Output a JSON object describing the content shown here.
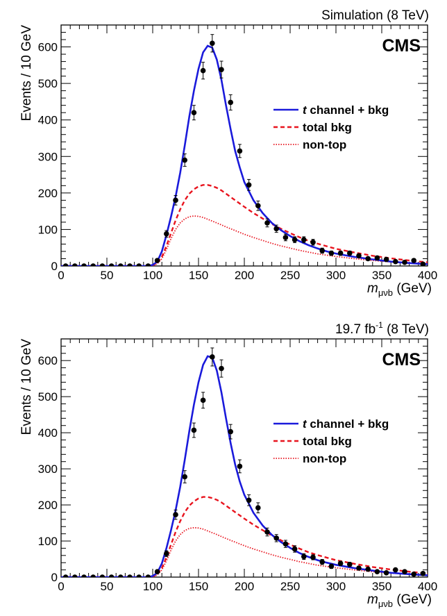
{
  "chart_data": [
    {
      "type": "line",
      "header_right": "Simulation (8 TeV)",
      "header_sup": "",
      "experiment": "CMS",
      "ylabel": "Events / 10 GeV",
      "xlabel_main": "m",
      "xlabel_sub": "μνb",
      "xlabel_unit": " (GeV)",
      "xlim": [
        0,
        400
      ],
      "ylim": [
        0,
        660
      ],
      "xticks": [
        0,
        50,
        100,
        150,
        200,
        250,
        300,
        350,
        400
      ],
      "yticks": [
        0,
        100,
        200,
        300,
        400,
        500,
        600
      ],
      "legend_placement": "right",
      "legend": [
        {
          "label_italic": "t",
          "label": " channel + bkg",
          "style": "solid",
          "color": "#1a1adb"
        },
        {
          "label_italic": "",
          "label": "total bkg",
          "style": "dashed",
          "color": "#e8141e"
        },
        {
          "label_italic": "",
          "label": "non-top",
          "style": "dotted",
          "color": "#e8141e"
        }
      ],
      "series": [
        {
          "key": "signal",
          "color": "#1a1adb",
          "x": [
            0,
            80,
            95,
            100,
            105,
            110,
            115,
            120,
            125,
            130,
            135,
            140,
            145,
            150,
            155,
            160,
            165,
            170,
            175,
            180,
            185,
            190,
            195,
            200,
            210,
            220,
            230,
            240,
            250,
            260,
            270,
            280,
            290,
            300,
            320,
            340,
            360,
            380,
            400
          ],
          "y": [
            0,
            0,
            0,
            3,
            12,
            40,
            85,
            135,
            190,
            255,
            330,
            410,
            480,
            540,
            585,
            603,
            598,
            565,
            510,
            440,
            375,
            315,
            270,
            230,
            180,
            145,
            118,
            98,
            82,
            68,
            57,
            48,
            40,
            34,
            25,
            18,
            12,
            8,
            5
          ]
        },
        {
          "key": "total_bkg",
          "color": "#e8141e",
          "x": [
            0,
            80,
            95,
            100,
            105,
            110,
            115,
            120,
            125,
            130,
            135,
            140,
            145,
            150,
            155,
            160,
            165,
            170,
            175,
            180,
            190,
            200,
            210,
            220,
            230,
            240,
            250,
            260,
            270,
            280,
            300,
            320,
            340,
            360,
            380,
            400
          ],
          "y": [
            0,
            0,
            0,
            2,
            8,
            25,
            55,
            90,
            125,
            155,
            180,
            198,
            210,
            218,
            222,
            222,
            219,
            214,
            207,
            198,
            180,
            162,
            145,
            130,
            115,
            102,
            90,
            79,
            69,
            61,
            47,
            37,
            28,
            21,
            15,
            10
          ]
        },
        {
          "key": "non_top",
          "color": "#e8141e",
          "x": [
            0,
            80,
            95,
            100,
            105,
            110,
            115,
            120,
            125,
            130,
            135,
            140,
            145,
            150,
            155,
            160,
            170,
            180,
            190,
            200,
            210,
            220,
            230,
            240,
            250,
            260,
            280,
            300,
            320,
            340,
            360,
            380,
            400
          ],
          "y": [
            0,
            0,
            0,
            1,
            6,
            20,
            45,
            75,
            100,
            118,
            129,
            135,
            137,
            136,
            133,
            128,
            118,
            107,
            97,
            87,
            78,
            70,
            62,
            55,
            49,
            43,
            33,
            26,
            20,
            15,
            11,
            8,
            6
          ]
        }
      ],
      "points": {
        "x": [
          5,
          15,
          25,
          35,
          45,
          55,
          65,
          75,
          85,
          95,
          105,
          115,
          125,
          135,
          145,
          155,
          165,
          175,
          185,
          195,
          205,
          215,
          225,
          235,
          245,
          255,
          265,
          275,
          285,
          295,
          305,
          315,
          325,
          335,
          345,
          355,
          365,
          375,
          385,
          395
        ],
        "y": [
          0,
          0,
          0,
          0,
          0,
          0,
          0,
          0,
          0,
          0,
          15,
          88,
          180,
          290,
          420,
          535,
          610,
          538,
          448,
          315,
          222,
          165,
          118,
          102,
          78,
          72,
          72,
          65,
          42,
          35,
          35,
          35,
          28,
          20,
          22,
          18,
          12,
          10,
          15,
          5
        ],
        "err": [
          0,
          0,
          0,
          0,
          0,
          0,
          0,
          0,
          0,
          0,
          4,
          9,
          13,
          17,
          20,
          23,
          24,
          23,
          21,
          18,
          15,
          13,
          11,
          10,
          9,
          8,
          8,
          8,
          7,
          6,
          6,
          6,
          5,
          4,
          5,
          4,
          4,
          3,
          4,
          2
        ]
      }
    },
    {
      "type": "line",
      "header_right": "19.7 fb",
      "header_sup": "-1",
      "header_right_tail": " (8 TeV)",
      "experiment": "CMS",
      "ylabel": "Events / 10 GeV",
      "xlabel_main": "m",
      "xlabel_sub": "μνb",
      "xlabel_unit": " (GeV)",
      "xlim": [
        0,
        400
      ],
      "ylim": [
        0,
        660
      ],
      "xticks": [
        0,
        50,
        100,
        150,
        200,
        250,
        300,
        350,
        400
      ],
      "yticks": [
        0,
        100,
        200,
        300,
        400,
        500,
        600
      ],
      "legend_placement": "right",
      "legend": [
        {
          "label_italic": "t",
          "label": " channel + bkg",
          "style": "solid",
          "color": "#1a1adb"
        },
        {
          "label_italic": "",
          "label": "total bkg",
          "style": "dashed",
          "color": "#e8141e"
        },
        {
          "label_italic": "",
          "label": "non-top",
          "style": "dotted",
          "color": "#e8141e"
        }
      ],
      "series": [
        {
          "key": "signal",
          "color": "#1a1adb",
          "x": [
            0,
            80,
            95,
            100,
            105,
            110,
            115,
            120,
            125,
            130,
            135,
            140,
            145,
            150,
            155,
            160,
            165,
            170,
            175,
            180,
            185,
            190,
            195,
            200,
            210,
            220,
            230,
            240,
            250,
            260,
            270,
            280,
            290,
            300,
            320,
            340,
            360,
            380,
            400
          ],
          "y": [
            0,
            0,
            0,
            3,
            12,
            38,
            80,
            130,
            185,
            250,
            325,
            405,
            478,
            540,
            588,
            612,
            608,
            572,
            512,
            440,
            372,
            312,
            265,
            228,
            178,
            143,
            117,
            97,
            81,
            67,
            56,
            47,
            40,
            34,
            25,
            18,
            12,
            8,
            5
          ]
        },
        {
          "key": "total_bkg",
          "color": "#e8141e",
          "x": [
            0,
            80,
            95,
            100,
            105,
            110,
            115,
            120,
            125,
            130,
            135,
            140,
            145,
            150,
            155,
            160,
            165,
            170,
            175,
            180,
            190,
            200,
            210,
            220,
            230,
            240,
            250,
            260,
            270,
            280,
            300,
            320,
            340,
            360,
            380,
            400
          ],
          "y": [
            0,
            0,
            0,
            2,
            8,
            25,
            55,
            90,
            125,
            155,
            180,
            198,
            210,
            218,
            222,
            222,
            219,
            214,
            207,
            198,
            180,
            162,
            145,
            130,
            115,
            102,
            90,
            79,
            69,
            61,
            47,
            37,
            28,
            21,
            15,
            10
          ]
        },
        {
          "key": "non_top",
          "color": "#e8141e",
          "x": [
            0,
            80,
            95,
            100,
            105,
            110,
            115,
            120,
            125,
            130,
            135,
            140,
            145,
            150,
            155,
            160,
            170,
            180,
            190,
            200,
            210,
            220,
            230,
            240,
            250,
            260,
            280,
            300,
            320,
            340,
            360,
            380,
            400
          ],
          "y": [
            0,
            0,
            0,
            1,
            6,
            20,
            45,
            75,
            100,
            118,
            129,
            135,
            137,
            136,
            133,
            128,
            118,
            107,
            97,
            87,
            78,
            70,
            62,
            55,
            49,
            43,
            33,
            26,
            20,
            15,
            11,
            8,
            6
          ]
        }
      ],
      "points": {
        "x": [
          5,
          15,
          25,
          35,
          45,
          55,
          65,
          75,
          85,
          95,
          105,
          115,
          125,
          135,
          145,
          155,
          165,
          175,
          185,
          195,
          205,
          215,
          225,
          235,
          245,
          255,
          265,
          275,
          285,
          295,
          305,
          315,
          325,
          335,
          345,
          355,
          365,
          375,
          385,
          395
        ],
        "y": [
          0,
          0,
          0,
          0,
          0,
          0,
          0,
          0,
          0,
          0,
          15,
          65,
          173,
          278,
          407,
          490,
          610,
          578,
          403,
          307,
          213,
          192,
          125,
          108,
          92,
          78,
          57,
          55,
          42,
          30,
          38,
          35,
          25,
          22,
          15,
          12,
          20,
          15,
          8,
          10
        ],
        "err": [
          0,
          0,
          0,
          0,
          0,
          0,
          0,
          0,
          0,
          0,
          4,
          8,
          13,
          17,
          20,
          22,
          25,
          24,
          20,
          18,
          15,
          14,
          11,
          10,
          10,
          9,
          8,
          7,
          7,
          6,
          6,
          6,
          5,
          5,
          4,
          4,
          4,
          4,
          3,
          3
        ]
      }
    }
  ]
}
